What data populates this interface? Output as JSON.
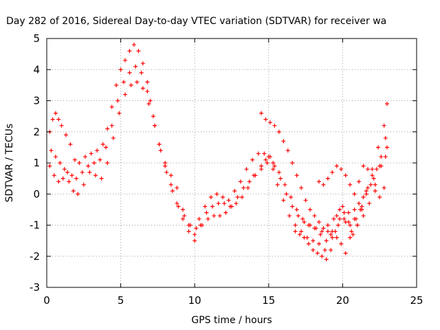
{
  "chart_data": {
    "type": "scatter",
    "title": "Day 282 of 2016, Sidereal Day-to-day VTEC variation (SDTVAR) for receiver wa",
    "xlabel": "GPS time / hours",
    "ylabel": "SDTVAR / TECUs",
    "xlim": [
      0,
      25
    ],
    "ylim": [
      -3,
      5
    ],
    "xticks": [
      0,
      5,
      10,
      15,
      20,
      25
    ],
    "yticks": [
      -3,
      -2,
      -1,
      0,
      1,
      2,
      3,
      4,
      5
    ],
    "grid": true,
    "marker": "+",
    "color": "#ff0000",
    "series": [
      {
        "x": [
          0.2,
          0.4,
          0.6,
          0.8,
          1.0,
          1.3,
          1.6,
          1.9,
          2.2,
          2.6,
          3.0,
          3.4,
          3.8,
          4.1,
          4.4,
          4.7,
          5.0,
          5.3,
          5.6,
          5.9,
          6.2,
          6.5,
          6.8,
          7.0,
          7.3,
          7.6,
          8.0,
          8.4,
          8.8,
          9.2,
          9.6,
          10.0,
          10.3,
          10.7,
          11.1,
          11.5,
          11.9,
          12.3,
          12.7,
          13.1,
          13.5,
          13.9,
          14.3,
          14.7,
          15.0,
          15.3,
          15.6,
          16.0,
          16.4,
          16.8,
          17.2,
          17.6,
          18.0,
          18.4,
          18.8,
          19.2,
          19.6,
          20.0,
          20.4,
          20.8,
          21.2,
          21.6,
          22.0,
          22.4,
          22.8,
          23.0
        ],
        "y": [
          2.0,
          2.4,
          2.6,
          2.4,
          2.2,
          1.9,
          1.6,
          1.1,
          1.0,
          1.2,
          1.3,
          1.4,
          1.6,
          2.1,
          2.8,
          3.5,
          4.0,
          4.3,
          4.6,
          4.8,
          4.6,
          4.2,
          3.6,
          3.0,
          2.2,
          1.6,
          1.0,
          0.6,
          0.2,
          -0.5,
          -1.0,
          -1.5,
          -0.8,
          -0.4,
          -0.1,
          0.0,
          -0.1,
          -0.2,
          0.1,
          0.4,
          0.8,
          1.1,
          1.3,
          1.3,
          1.2,
          0.8,
          0.3,
          -0.2,
          -0.7,
          -1.0,
          -1.2,
          -1.4,
          -1.5,
          -1.6,
          -1.8,
          -1.3,
          -0.7,
          -0.4,
          -0.6,
          -0.8,
          -0.5,
          0.1,
          0.8,
          1.5,
          2.2,
          2.9
        ]
      },
      {
        "x": [
          0.2,
          0.5,
          0.8,
          1.1,
          1.4,
          1.7,
          2.0,
          2.4,
          2.8,
          3.2,
          3.6,
          4.0,
          4.4,
          4.8,
          5.2,
          5.6,
          6.0,
          6.4,
          6.8,
          7.2,
          7.6,
          8.0,
          8.4,
          8.8,
          9.2,
          9.6,
          10.0,
          10.4,
          10.8,
          11.2,
          11.6,
          12.0,
          12.4,
          12.8,
          13.2,
          13.6,
          14.0,
          14.5,
          14.8,
          15.1,
          15.4,
          15.8,
          16.2,
          16.6,
          17.0,
          17.4,
          17.8,
          18.2,
          18.6,
          19.0,
          19.4,
          19.8,
          20.2,
          20.6,
          21.0,
          21.4,
          21.8,
          22.2,
          22.6,
          23.0
        ],
        "y": [
          0.9,
          0.6,
          0.4,
          0.5,
          0.7,
          0.6,
          0.5,
          0.7,
          0.9,
          1.0,
          1.1,
          1.5,
          2.2,
          3.0,
          3.6,
          3.9,
          4.1,
          3.9,
          3.3,
          2.5,
          1.6,
          0.9,
          0.3,
          -0.3,
          -0.8,
          -1.2,
          -1.3,
          -1.0,
          -0.6,
          -0.4,
          -0.3,
          -0.3,
          -0.4,
          -0.3,
          -0.1,
          0.2,
          0.6,
          0.9,
          1.1,
          1.2,
          0.9,
          0.5,
          0.0,
          -0.4,
          -0.7,
          -0.9,
          -1.0,
          -1.1,
          -1.2,
          -1.0,
          -0.8,
          -0.5,
          -0.9,
          -1.2,
          -1.0,
          -0.7,
          -0.3,
          0.3,
          0.9,
          1.5
        ]
      },
      {
        "x": [
          0.3,
          0.6,
          0.9,
          1.2,
          1.5,
          1.8,
          2.1,
          2.5,
          2.9,
          3.3,
          3.7,
          4.1,
          4.5,
          4.9,
          5.3,
          5.7,
          6.1,
          6.5,
          6.9,
          7.3,
          7.7,
          8.1,
          8.5,
          8.9,
          9.3,
          9.7,
          10.1,
          10.5,
          10.9,
          11.3,
          11.7,
          12.1,
          12.5,
          12.9,
          13.3,
          13.7,
          14.1,
          14.5,
          14.9,
          15.3,
          15.7,
          16.1,
          16.5,
          16.9,
          17.3,
          17.7,
          18.1,
          18.5,
          18.9,
          19.3,
          19.7,
          20.1,
          20.5,
          20.9,
          21.3,
          21.7,
          22.1,
          22.5,
          22.9
        ],
        "y": [
          1.4,
          1.2,
          1.0,
          0.8,
          0.4,
          0.1,
          0.0,
          0.3,
          0.7,
          0.6,
          0.5,
          1.0,
          1.8,
          2.6,
          3.2,
          3.5,
          3.6,
          3.4,
          2.9,
          2.2,
          1.4,
          0.7,
          0.1,
          -0.4,
          -0.7,
          -1.0,
          -1.1,
          -1.0,
          -0.8,
          -0.7,
          -0.7,
          -0.6,
          -0.4,
          -0.1,
          0.2,
          0.4,
          0.6,
          0.8,
          1.0,
          1.0,
          0.7,
          0.3,
          -0.1,
          -0.5,
          -0.8,
          -1.0,
          -1.1,
          -1.3,
          -1.5,
          -1.4,
          -1.0,
          -0.8,
          -1.0,
          -0.8,
          -0.4,
          0.2,
          0.5,
          0.9,
          1.2
        ]
      },
      {
        "x": [
          14.5,
          14.8,
          15.1,
          15.4,
          15.7,
          16.0,
          16.3,
          16.6,
          16.9,
          17.2,
          17.5,
          17.8,
          18.1,
          18.4,
          18.7,
          19.0,
          19.3,
          19.6,
          19.9,
          20.2,
          20.5,
          20.8,
          21.1,
          21.4,
          21.7,
          22.0,
          22.3,
          22.6,
          22.9
        ],
        "y": [
          2.6,
          2.4,
          2.3,
          2.2,
          2.0,
          1.7,
          1.4,
          1.0,
          0.6,
          0.2,
          -0.2,
          -0.5,
          -0.7,
          -0.9,
          -1.1,
          -1.2,
          -1.2,
          -1.4,
          -1.6,
          -1.9,
          -1.4,
          -0.5,
          0.4,
          0.9,
          0.8,
          0.6,
          0.8,
          1.2,
          1.8
        ]
      },
      {
        "x": [
          16.8,
          17.1,
          17.4,
          17.7,
          18.0,
          18.3,
          18.6,
          18.9,
          19.2,
          19.5,
          19.8,
          20.1,
          20.4,
          20.7,
          21.0,
          21.3,
          21.6,
          21.9,
          22.2,
          22.5,
          22.8
        ],
        "y": [
          -1.2,
          -1.3,
          -1.4,
          -1.6,
          -1.8,
          -1.9,
          -2.0,
          -2.1,
          -1.8,
          -1.2,
          -0.8,
          -0.6,
          -0.9,
          -1.3,
          -1.0,
          -0.5,
          0.0,
          0.3,
          0.1,
          -0.1,
          0.2
        ]
      },
      {
        "x": [
          18.4,
          18.7,
          19.0,
          19.3,
          19.6,
          19.9,
          20.2,
          20.5,
          20.8,
          21.1,
          21.4
        ],
        "y": [
          0.4,
          0.3,
          0.5,
          0.7,
          0.9,
          0.8,
          0.6,
          0.3,
          0.0,
          -0.3,
          -0.1
        ]
      }
    ]
  }
}
